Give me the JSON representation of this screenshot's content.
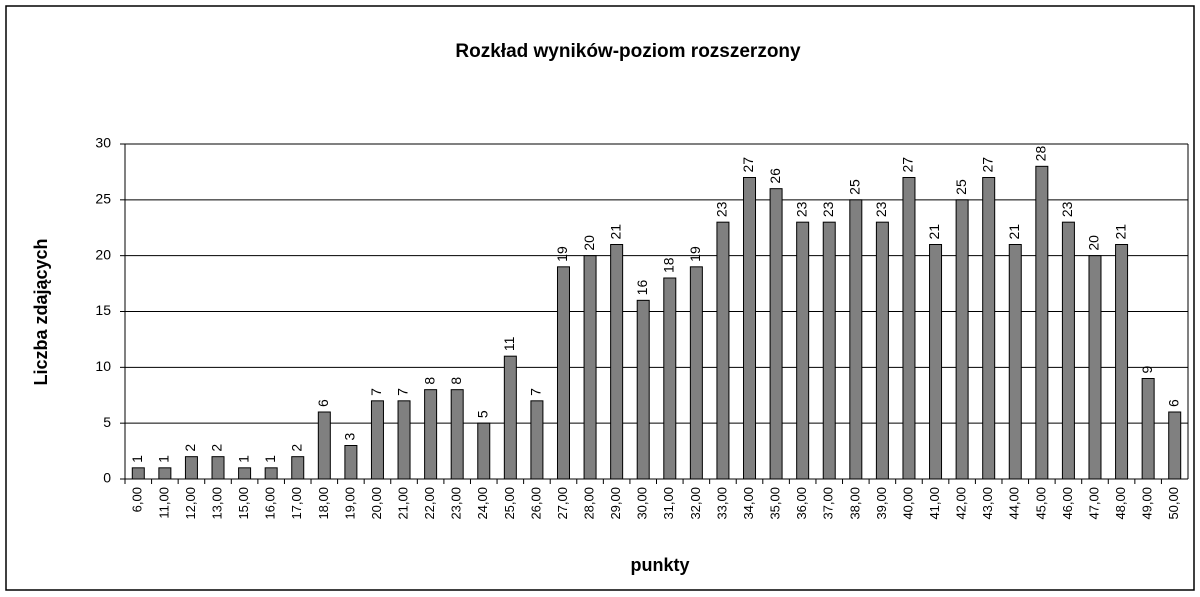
{
  "chart_data": {
    "type": "bar",
    "title": "Rozkład wyników-poziom rozszerzony",
    "x_label": "punkty",
    "y_label": "Liczba zdających",
    "categories": [
      "6,00",
      "11,00",
      "12,00",
      "13,00",
      "15,00",
      "16,00",
      "17,00",
      "18,00",
      "19,00",
      "20,00",
      "21,00",
      "22,00",
      "23,00",
      "24,00",
      "25,00",
      "26,00",
      "27,00",
      "28,00",
      "29,00",
      "30,00",
      "31,00",
      "32,00",
      "33,00",
      "34,00",
      "35,00",
      "36,00",
      "37,00",
      "38,00",
      "39,00",
      "40,00",
      "41,00",
      "42,00",
      "43,00",
      "44,00",
      "45,00",
      "46,00",
      "47,00",
      "48,00",
      "49,00",
      "50,00"
    ],
    "values": [
      1,
      1,
      2,
      2,
      1,
      1,
      2,
      6,
      3,
      7,
      7,
      8,
      8,
      5,
      11,
      7,
      19,
      20,
      21,
      16,
      18,
      19,
      23,
      27,
      26,
      23,
      23,
      25,
      23,
      27,
      21,
      25,
      27,
      21,
      28,
      23,
      20,
      21,
      9,
      6
    ],
    "color": "#808080",
    "ylim": [
      0,
      30
    ],
    "yticks": [
      0,
      5,
      10,
      15,
      20,
      25,
      30
    ],
    "grid": true
  }
}
